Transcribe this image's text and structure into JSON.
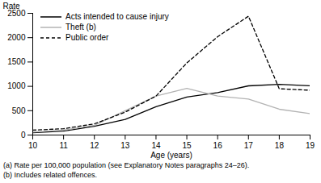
{
  "chart_data": {
    "type": "line",
    "x_label": "Age (years)",
    "y_label": "Rate",
    "x": [
      10,
      11,
      12,
      13,
      14,
      15,
      16,
      17,
      18,
      19
    ],
    "series": [
      {
        "name": "Acts intended to cause injury",
        "color": "#000000",
        "line_style": "solid",
        "values": [
          50,
          80,
          180,
          320,
          580,
          780,
          870,
          1010,
          1040,
          1010
        ]
      },
      {
        "name": "Theft (b)",
        "color": "#b3b3b3",
        "line_style": "solid",
        "values": [
          60,
          100,
          200,
          500,
          800,
          960,
          800,
          740,
          530,
          440
        ]
      },
      {
        "name": "Public order",
        "color": "#000000",
        "line_style": "dashed",
        "values": [
          100,
          130,
          230,
          470,
          800,
          1480,
          2020,
          2440,
          950,
          920
        ]
      }
    ],
    "xlim": [
      10,
      19
    ],
    "xticks": [
      10,
      11,
      12,
      13,
      14,
      15,
      16,
      17,
      18,
      19
    ],
    "ylim": [
      0,
      2500
    ],
    "yticks": [
      0,
      500,
      1000,
      1500,
      2000,
      2500
    ],
    "grid": false,
    "legend": "top-left",
    "annotations": [
      "(a) Rate per 100,000 population (see Explanatory Notes paragraphs 24–26).",
      "(b) Includes related offences."
    ]
  }
}
